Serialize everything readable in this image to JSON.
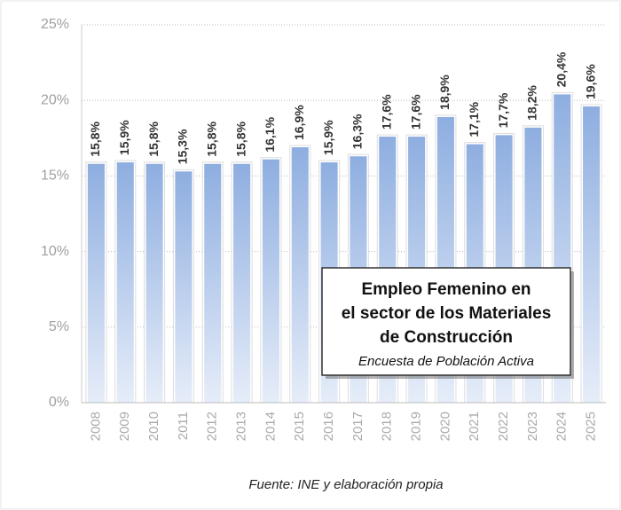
{
  "chart_data": {
    "type": "bar",
    "title": [
      "Empleo Femenino en",
      "el sector de los Materiales",
      "de Construcción"
    ],
    "subtitle": "Encuesta de Población Activa",
    "source": "Fuente: INE y elaboración propia",
    "categories": [
      "2008",
      "2009",
      "2010",
      "2011",
      "2012",
      "2013",
      "2014",
      "2015",
      "2016",
      "2017",
      "2018",
      "2019",
      "2020",
      "2021",
      "2022",
      "2023",
      "2024",
      "2025"
    ],
    "values": [
      15.8,
      15.9,
      15.8,
      15.3,
      15.8,
      15.8,
      16.1,
      16.9,
      15.9,
      16.3,
      17.6,
      17.6,
      18.9,
      17.1,
      17.7,
      18.2,
      20.4,
      19.6
    ],
    "value_labels": [
      "15,8%",
      "15,9%",
      "15,8%",
      "15,3%",
      "15,8%",
      "15,8%",
      "16,1%",
      "16,9%",
      "15,9%",
      "16,3%",
      "17,6%",
      "17,6%",
      "18,9%",
      "17,1%",
      "17,7%",
      "18,2%",
      "20,4%",
      "19,6%"
    ],
    "color": "#8eaee0",
    "ylim": [
      0,
      25
    ],
    "yticks": [
      {
        "value": 0,
        "label": "0%"
      },
      {
        "value": 5,
        "label": "5%"
      },
      {
        "value": 10,
        "label": "10%"
      },
      {
        "value": 15,
        "label": "15%"
      },
      {
        "value": 20,
        "label": "20%"
      },
      {
        "value": 25,
        "label": "25%"
      }
    ],
    "grid": true
  }
}
